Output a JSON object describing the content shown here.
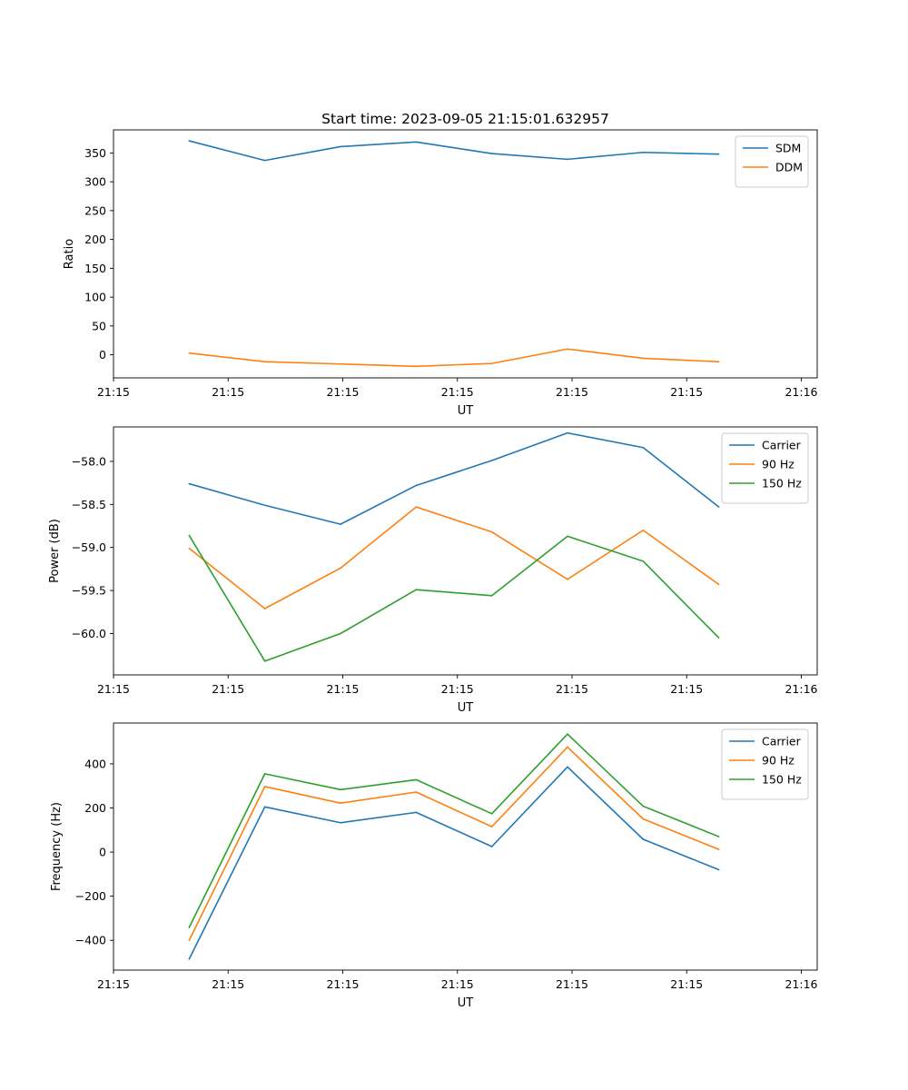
{
  "figure": {
    "title": "Start time: 2023-09-05 21:15:01.632957"
  },
  "chart_data": [
    {
      "type": "line",
      "title": "Start time: 2023-09-05 21:15:01.632957",
      "xlabel": "UT",
      "ylabel": "Ratio",
      "x": [
        1,
        2,
        3,
        4,
        5,
        6,
        7,
        8
      ],
      "xlim": [
        0,
        9.3
      ],
      "x_tick_positions": [
        0,
        1.515,
        3.03,
        4.545,
        6.06,
        7.575,
        9.09
      ],
      "x_tick_labels": [
        "21:15",
        "21:15",
        "21:15",
        "21:15",
        "21:15",
        "21:15",
        "21:16"
      ],
      "ylim": [
        -40,
        390
      ],
      "y_ticks": [
        0,
        50,
        100,
        150,
        200,
        250,
        300,
        350
      ],
      "y_tick_labels": [
        "0",
        "50",
        "100",
        "150",
        "200",
        "250",
        "300",
        "350"
      ],
      "series": [
        {
          "name": "SDM",
          "color": "#1f77b4",
          "values": [
            371,
            337,
            361,
            369,
            349,
            339,
            351,
            348
          ]
        },
        {
          "name": "DDM",
          "color": "#ff7f0e",
          "values": [
            3,
            -12,
            -16,
            -20,
            -15,
            10,
            -6,
            -12
          ]
        }
      ],
      "legend": "top-right"
    },
    {
      "type": "line",
      "title": "",
      "xlabel": "UT",
      "ylabel": "Power (dB)",
      "x": [
        1,
        2,
        3,
        4,
        5,
        6,
        7,
        8
      ],
      "xlim": [
        0,
        9.3
      ],
      "x_tick_positions": [
        0,
        1.515,
        3.03,
        4.545,
        6.06,
        7.575,
        9.09
      ],
      "x_tick_labels": [
        "21:15",
        "21:15",
        "21:15",
        "21:15",
        "21:15",
        "21:15",
        "21:16"
      ],
      "ylim": [
        -60.48,
        -57.6
      ],
      "y_ticks": [
        -60.0,
        -59.5,
        -59.0,
        -58.5,
        -58.0
      ],
      "y_tick_labels": [
        "−60.0",
        "−59.5",
        "−59.0",
        "−58.5",
        "−58.0"
      ],
      "series": [
        {
          "name": "Carrier",
          "color": "#1f77b4",
          "values": [
            -58.26,
            -58.51,
            -58.73,
            -58.28,
            -57.99,
            -57.67,
            -57.84,
            -58.53
          ]
        },
        {
          "name": "90 Hz",
          "color": "#ff7f0e",
          "values": [
            -59.01,
            -59.71,
            -59.24,
            -58.53,
            -58.82,
            -59.37,
            -58.8,
            -59.43
          ]
        },
        {
          "name": "150 Hz",
          "color": "#2ca02c",
          "values": [
            -58.86,
            -60.32,
            -60.0,
            -59.49,
            -59.56,
            -58.87,
            -59.16,
            -60.05
          ]
        }
      ],
      "legend": "top-right"
    },
    {
      "type": "line",
      "title": "",
      "xlabel": "UT",
      "ylabel": "Frequency (Hz)",
      "x": [
        1,
        2,
        3,
        4,
        5,
        6,
        7,
        8
      ],
      "xlim": [
        0,
        9.3
      ],
      "x_tick_positions": [
        0,
        1.515,
        3.03,
        4.545,
        6.06,
        7.575,
        9.09
      ],
      "x_tick_labels": [
        "21:15",
        "21:15",
        "21:15",
        "21:15",
        "21:15",
        "21:15",
        "21:16"
      ],
      "ylim": [
        -535,
        585
      ],
      "y_ticks": [
        -400,
        -200,
        0,
        200,
        400
      ],
      "y_tick_labels": [
        "−400",
        "−200",
        "0",
        "200",
        "400"
      ],
      "series": [
        {
          "name": "Carrier",
          "color": "#1f77b4",
          "values": [
            -485,
            205,
            133,
            180,
            25,
            386,
            58,
            -80
          ]
        },
        {
          "name": "90 Hz",
          "color": "#ff7f0e",
          "values": [
            -400,
            297,
            222,
            272,
            115,
            476,
            150,
            12
          ]
        },
        {
          "name": "150 Hz",
          "color": "#2ca02c",
          "values": [
            -342,
            355,
            283,
            328,
            174,
            535,
            208,
            70
          ]
        }
      ],
      "legend": "top-right"
    }
  ]
}
